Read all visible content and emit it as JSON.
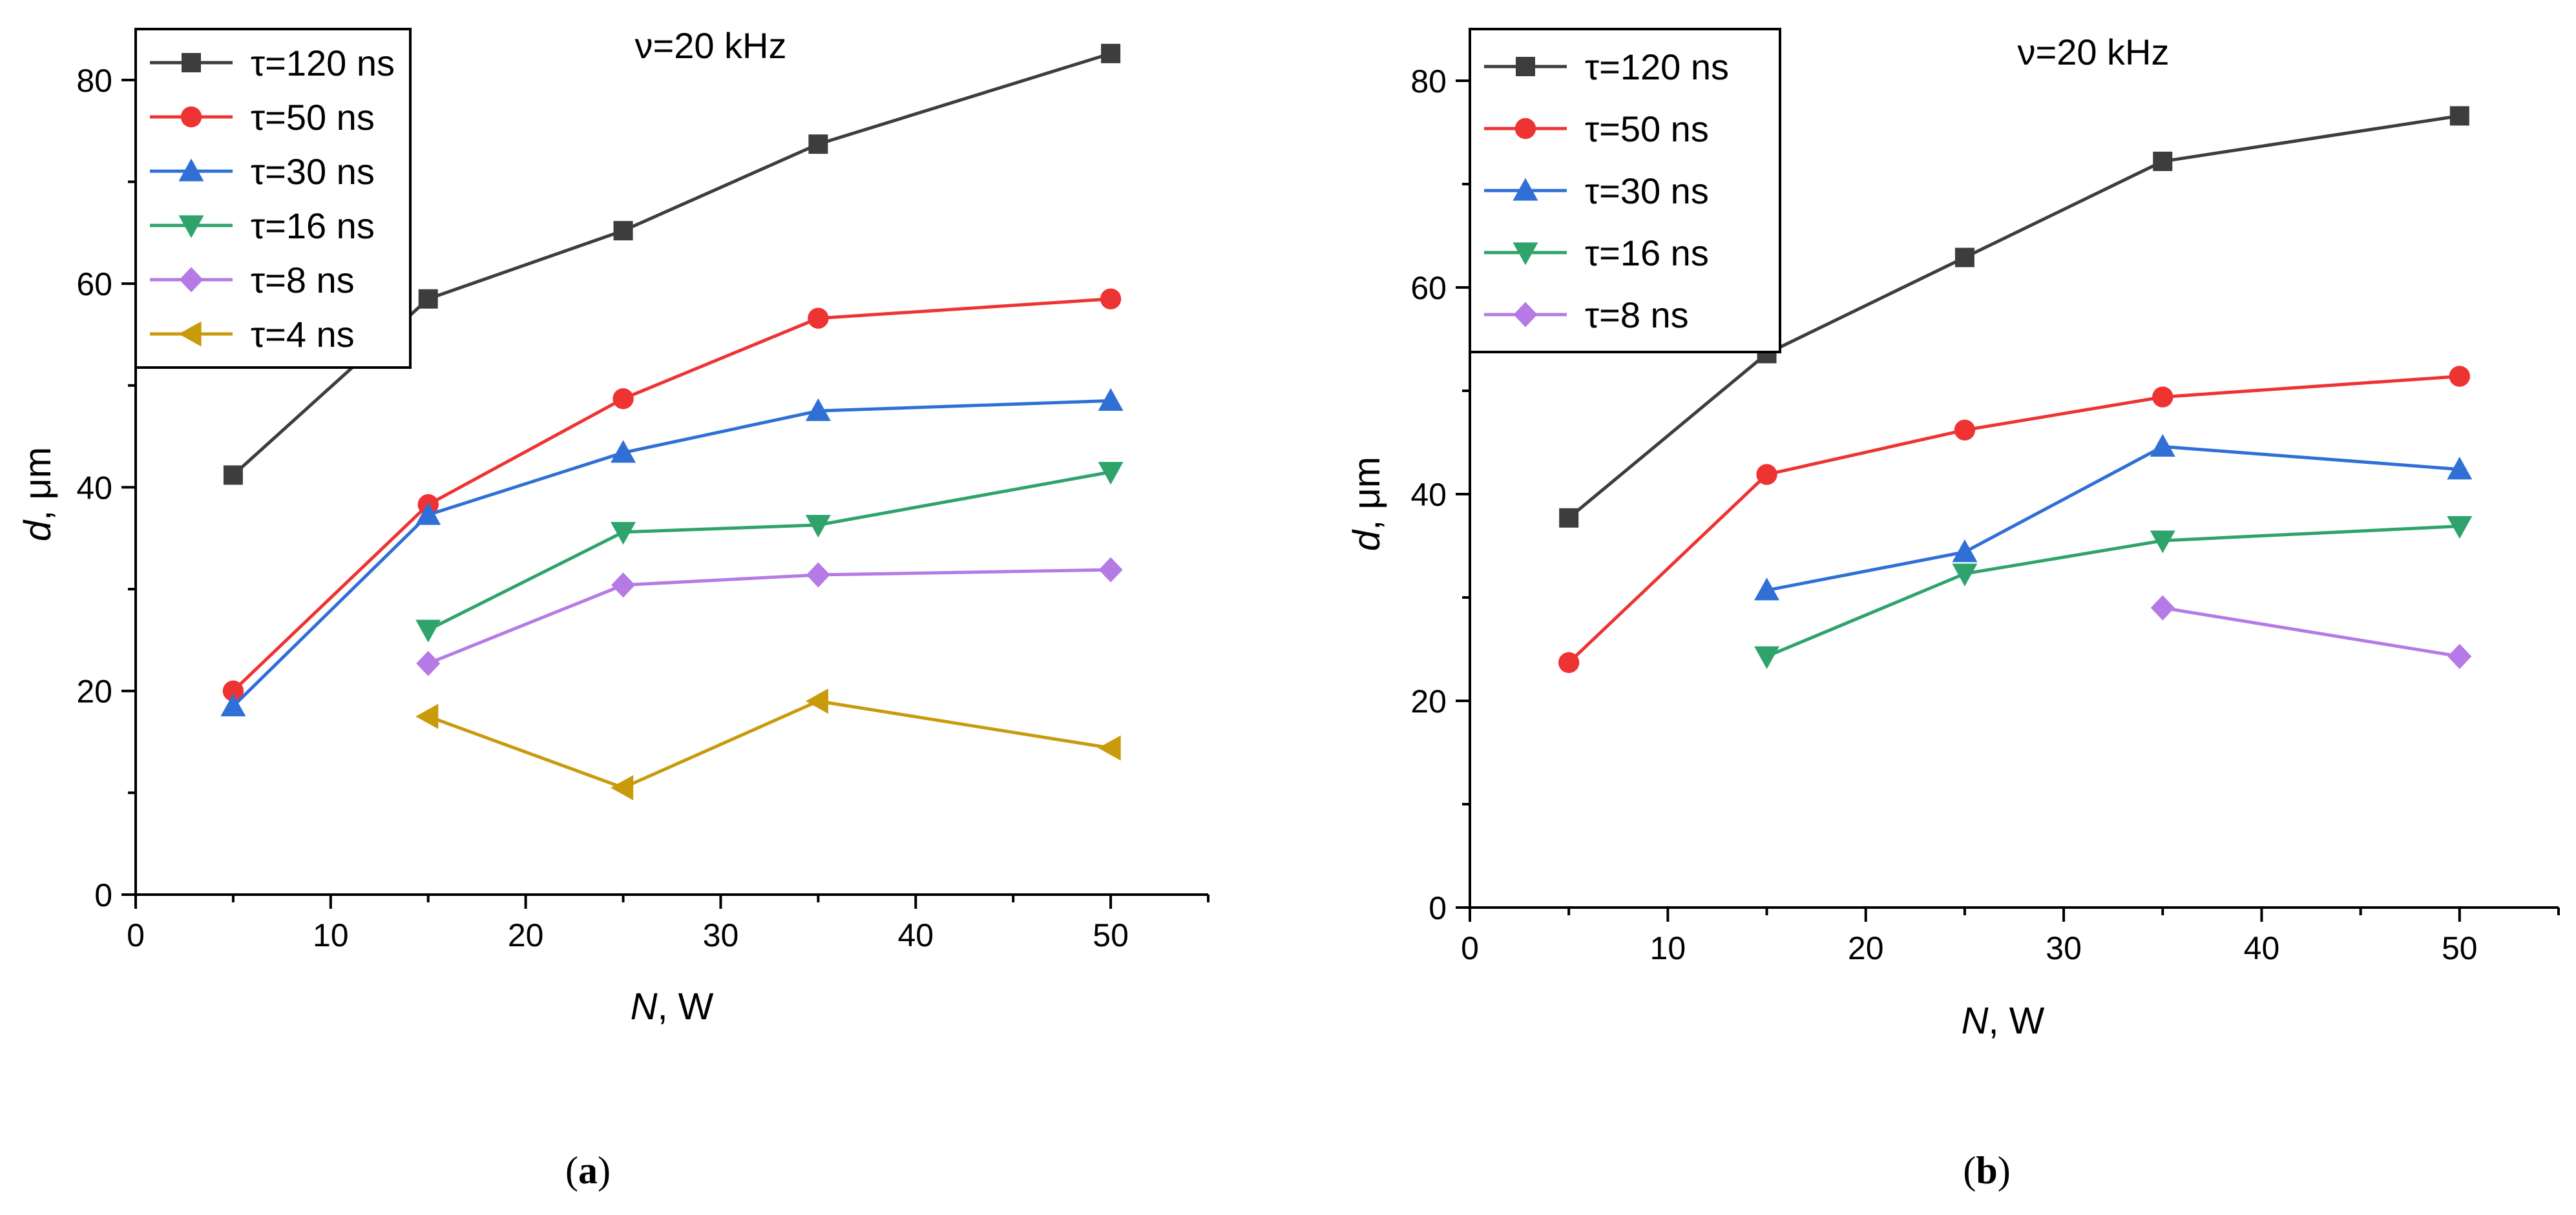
{
  "chart_data": [
    {
      "type": "line",
      "panel": "a",
      "caption": {
        "open": "(",
        "label": "a",
        "close": ")"
      },
      "annotation": "ν=20 kHz",
      "xlabel": {
        "var": "N",
        "rest": ", W"
      },
      "ylabel": {
        "var": "d",
        "rest": ", μm"
      },
      "xlim": [
        0,
        55
      ],
      "ylim": [
        0,
        85
      ],
      "xticks": [
        0,
        10,
        20,
        30,
        40,
        50
      ],
      "yticks": [
        0,
        20,
        40,
        60,
        80
      ],
      "legend_position": "top-left",
      "series": [
        {
          "name": "τ=120 ns",
          "color": "#3d3d3d",
          "marker": "square",
          "x": [
            5,
            15,
            25,
            35,
            50
          ],
          "y": [
            41.2,
            58.5,
            65.2,
            73.7,
            82.6
          ]
        },
        {
          "name": "τ=50 ns",
          "color": "#ee3333",
          "marker": "circle",
          "x": [
            5,
            15,
            25,
            35,
            50
          ],
          "y": [
            20.0,
            38.3,
            48.7,
            56.6,
            58.5
          ]
        },
        {
          "name": "τ=30 ns",
          "color": "#2f6fd6",
          "marker": "triangle-up",
          "x": [
            5,
            15,
            25,
            35,
            50
          ],
          "y": [
            18.5,
            37.3,
            43.4,
            47.5,
            48.5
          ]
        },
        {
          "name": "τ=16 ns",
          "color": "#2ea36b",
          "marker": "triangle-down",
          "x": [
            15,
            25,
            35,
            50
          ],
          "y": [
            26.0,
            35.6,
            36.3,
            41.5
          ]
        },
        {
          "name": "τ=8 ns",
          "color": "#b57ae6",
          "marker": "diamond",
          "x": [
            15,
            25,
            35,
            50
          ],
          "y": [
            22.7,
            30.4,
            31.4,
            31.9
          ]
        },
        {
          "name": "τ=4 ns",
          "color": "#c99a0c",
          "marker": "triangle-left",
          "x": [
            15,
            25,
            35,
            50
          ],
          "y": [
            17.5,
            10.5,
            19.0,
            14.4
          ]
        }
      ]
    },
    {
      "type": "line",
      "panel": "b",
      "caption": {
        "open": "(",
        "label": "b",
        "close": ")"
      },
      "annotation": "ν=20 kHz",
      "xlabel": {
        "var": "N",
        "rest": ", W"
      },
      "ylabel": {
        "var": "d",
        "rest": ", μm"
      },
      "xlim": [
        0,
        55
      ],
      "ylim": [
        0,
        85
      ],
      "xticks": [
        0,
        10,
        20,
        30,
        40,
        50
      ],
      "yticks": [
        0,
        20,
        40,
        60,
        80
      ],
      "legend_position": "top-left",
      "series": [
        {
          "name": "τ=120 ns",
          "color": "#3d3d3d",
          "marker": "square",
          "x": [
            5,
            15,
            25,
            35,
            50
          ],
          "y": [
            37.7,
            53.6,
            62.9,
            72.2,
            76.6
          ]
        },
        {
          "name": "τ=50 ns",
          "color": "#ee3333",
          "marker": "circle",
          "x": [
            5,
            15,
            25,
            35,
            50
          ],
          "y": [
            23.7,
            41.9,
            46.2,
            49.4,
            51.4
          ]
        },
        {
          "name": "τ=30 ns",
          "color": "#2f6fd6",
          "marker": "triangle-up",
          "x": [
            15,
            25,
            35,
            50
          ],
          "y": [
            30.7,
            34.4,
            44.6,
            42.4
          ]
        },
        {
          "name": "τ=16 ns",
          "color": "#2ea36b",
          "marker": "triangle-down",
          "x": [
            15,
            25,
            35,
            50
          ],
          "y": [
            24.3,
            32.3,
            35.5,
            36.9
          ]
        },
        {
          "name": "τ=8 ns",
          "color": "#b57ae6",
          "marker": "diamond",
          "x": [
            35,
            50
          ],
          "y": [
            29.0,
            24.3
          ]
        }
      ]
    }
  ]
}
